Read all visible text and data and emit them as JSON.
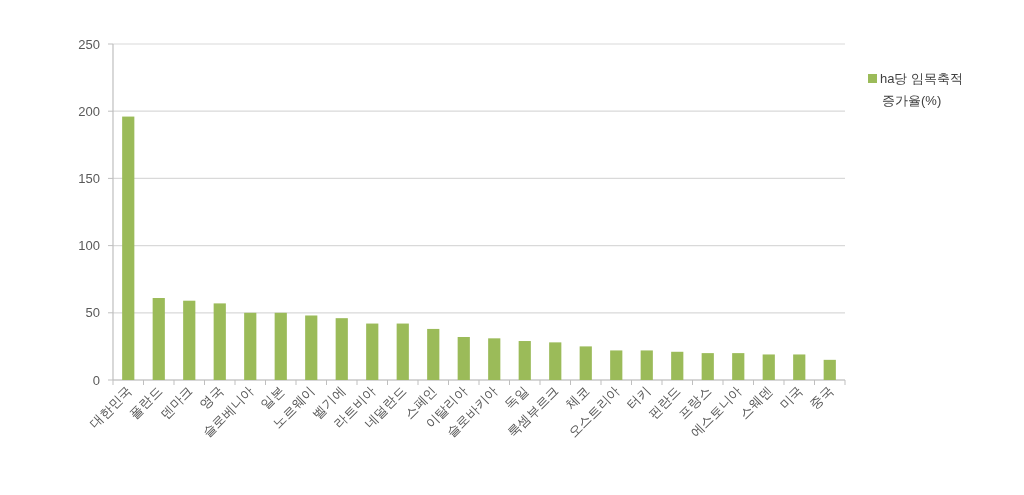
{
  "chart_data": {
    "type": "bar",
    "categories": [
      "대한민국",
      "폴란드",
      "덴마크",
      "영국",
      "슬로베니아",
      "일본",
      "노르웨이",
      "벨기에",
      "라트비아",
      "네덜란드",
      "스페인",
      "이탈리아",
      "슬로바키아",
      "독일",
      "룩셈부르크",
      "체코",
      "오스트리아",
      "터키",
      "핀란드",
      "프랑스",
      "에스토니아",
      "스웨덴",
      "미국",
      "중국"
    ],
    "series": [
      {
        "name": "ha당 임목축적 증가율(%)",
        "color": "#9bbb59",
        "values": [
          196,
          61,
          59,
          57,
          50,
          50,
          48,
          46,
          42,
          42,
          38,
          32,
          31,
          29,
          28,
          25,
          22,
          22,
          21,
          20,
          20,
          19,
          19,
          15
        ]
      }
    ],
    "ylim": [
      0,
      250
    ],
    "yticks": [
      0,
      50,
      100,
      150,
      200,
      250
    ],
    "grid": "y",
    "legend": "right"
  }
}
